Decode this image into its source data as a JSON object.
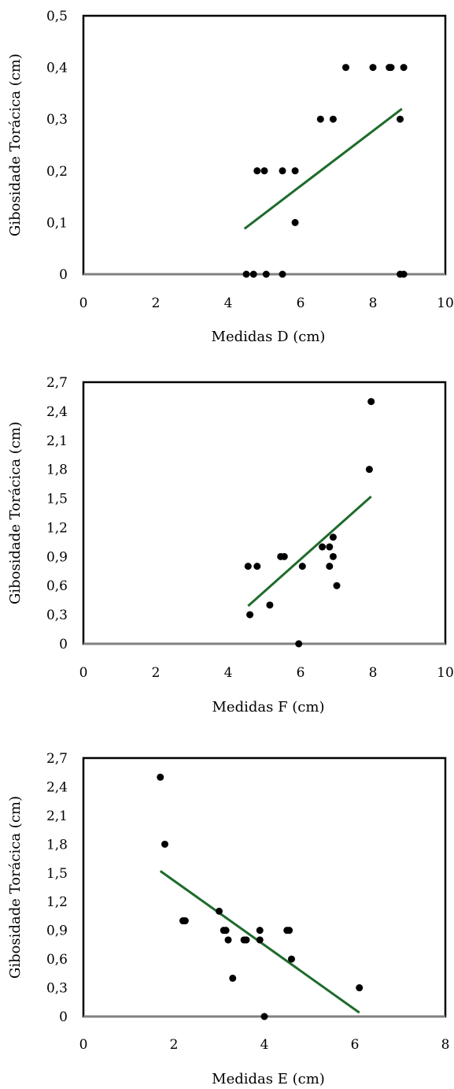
{
  "chart_data": [
    {
      "type": "scatter",
      "xlabel": "Medidas D (cm)",
      "ylabel": "Gibosidade Torácica (cm)",
      "xlim": [
        0,
        10
      ],
      "ylim": [
        0,
        0.5
      ],
      "x_ticks": [
        0,
        2,
        4,
        6,
        8,
        10
      ],
      "x_tick_labels": [
        "0",
        "2",
        "4",
        "6",
        "8",
        "10"
      ],
      "y_ticks": [
        0,
        0.1,
        0.2,
        0.3,
        0.4,
        0.5
      ],
      "y_tick_labels": [
        "0",
        "0,1",
        "0,2",
        "0,3",
        "0,4",
        "0,5"
      ],
      "grid": false,
      "legend": "none",
      "points": [
        [
          4.5,
          0
        ],
        [
          4.7,
          0
        ],
        [
          5.05,
          0
        ],
        [
          5.5,
          0
        ],
        [
          8.75,
          0
        ],
        [
          8.85,
          0
        ],
        [
          5.85,
          0.1
        ],
        [
          4.8,
          0.2
        ],
        [
          5.0,
          0.2
        ],
        [
          5.5,
          0.2
        ],
        [
          5.85,
          0.2
        ],
        [
          6.55,
          0.3
        ],
        [
          6.9,
          0.3
        ],
        [
          8.75,
          0.3
        ],
        [
          7.25,
          0.4
        ],
        [
          8.0,
          0.4
        ],
        [
          8.45,
          0.4
        ],
        [
          8.5,
          0.4
        ],
        [
          8.85,
          0.4
        ]
      ],
      "trendline": {
        "x": [
          4.45,
          8.8
        ],
        "y": [
          0.088,
          0.32
        ]
      },
      "colors": {
        "points": "#000000",
        "trendline": "#1e6b2b",
        "baseline": "#808080"
      }
    },
    {
      "type": "scatter",
      "xlabel": "Medidas F (cm)",
      "ylabel": "Gibosidade Torácica (cm)",
      "xlim": [
        0,
        10
      ],
      "ylim": [
        0,
        2.7
      ],
      "x_ticks": [
        0,
        2,
        4,
        6,
        8,
        10
      ],
      "x_tick_labels": [
        "0",
        "2",
        "4",
        "6",
        "8",
        "10"
      ],
      "y_ticks": [
        0,
        0.3,
        0.6,
        0.9,
        1.2,
        1.5,
        1.8,
        2.1,
        2.4,
        2.7
      ],
      "y_tick_labels": [
        "0",
        "0,3",
        "0,6",
        "0,9",
        "1,2",
        "1,5",
        "1,8",
        "2,1",
        "2,4",
        "2,7"
      ],
      "grid": false,
      "legend": "none",
      "points": [
        [
          4.6,
          0.3
        ],
        [
          4.55,
          0.8
        ],
        [
          4.8,
          0.8
        ],
        [
          5.15,
          0.4
        ],
        [
          5.45,
          0.9
        ],
        [
          5.55,
          0.9
        ],
        [
          6.05,
          0.8
        ],
        [
          5.95,
          0.0
        ],
        [
          6.6,
          1.0
        ],
        [
          6.8,
          1.0
        ],
        [
          6.8,
          0.8
        ],
        [
          6.9,
          1.1
        ],
        [
          6.9,
          0.9
        ],
        [
          7.0,
          0.6
        ],
        [
          7.9,
          1.8
        ],
        [
          7.95,
          2.5
        ]
      ],
      "trendline": {
        "x": [
          4.55,
          7.95
        ],
        "y": [
          0.39,
          1.52
        ]
      },
      "colors": {
        "points": "#000000",
        "trendline": "#1e6b2b",
        "baseline": "#808080"
      }
    },
    {
      "type": "scatter",
      "xlabel": "Medidas E (cm)",
      "ylabel": "Gibosidade Torácica (cm)",
      "xlim": [
        0,
        8
      ],
      "ylim": [
        0,
        2.7
      ],
      "x_ticks": [
        0,
        2,
        4,
        6,
        8
      ],
      "x_tick_labels": [
        "0",
        "2",
        "4",
        "6",
        "8"
      ],
      "y_ticks": [
        0,
        0.3,
        0.6,
        0.9,
        1.2,
        1.5,
        1.8,
        2.1,
        2.4,
        2.7
      ],
      "y_tick_labels": [
        "0",
        "0,3",
        "0,6",
        "0,9",
        "1,2",
        "1,5",
        "1,8",
        "2,1",
        "2,4",
        "2,7"
      ],
      "grid": false,
      "legend": "none",
      "points": [
        [
          1.7,
          2.5
        ],
        [
          1.8,
          1.8
        ],
        [
          2.2,
          1.0
        ],
        [
          2.25,
          1.0
        ],
        [
          3.0,
          1.1
        ],
        [
          3.1,
          0.9
        ],
        [
          3.15,
          0.9
        ],
        [
          3.2,
          0.8
        ],
        [
          3.3,
          0.4
        ],
        [
          3.55,
          0.8
        ],
        [
          3.6,
          0.8
        ],
        [
          3.9,
          0.9
        ],
        [
          3.9,
          0.8
        ],
        [
          4.0,
          0.0
        ],
        [
          4.5,
          0.9
        ],
        [
          4.55,
          0.9
        ],
        [
          4.6,
          0.6
        ],
        [
          6.1,
          0.3
        ]
      ],
      "trendline": {
        "x": [
          1.7,
          6.1
        ],
        "y": [
          1.52,
          0.04
        ]
      },
      "colors": {
        "points": "#000000",
        "trendline": "#1e6b2b",
        "baseline": "#808080"
      }
    }
  ]
}
